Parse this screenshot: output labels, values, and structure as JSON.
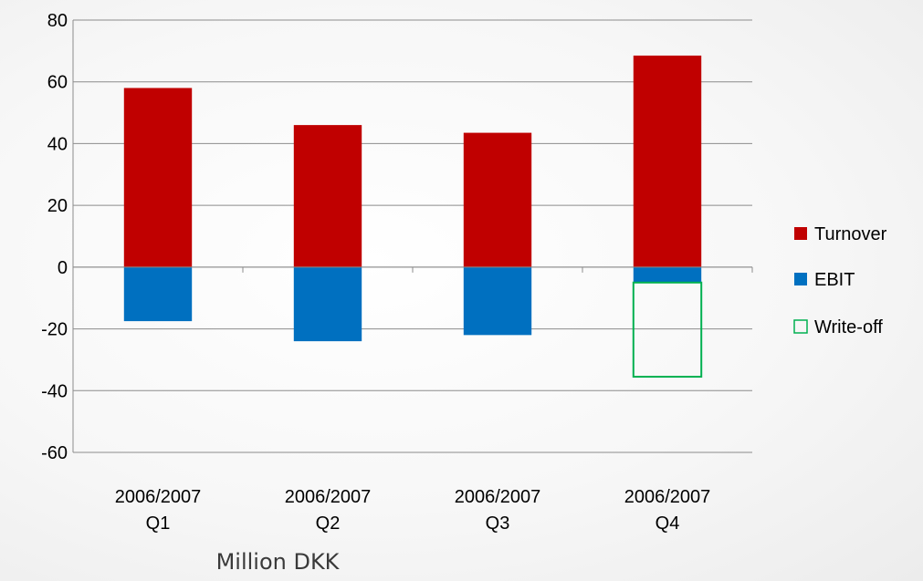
{
  "chart_data": {
    "type": "bar",
    "stacked": true,
    "categories": [
      [
        "2006/2007",
        "Q1"
      ],
      [
        "2006/2007",
        "Q2"
      ],
      [
        "2006/2007",
        "Q3"
      ],
      [
        "2006/2007",
        "Q4"
      ]
    ],
    "series": [
      {
        "name": "Turnover",
        "values": [
          58,
          46,
          43.5,
          68.5
        ],
        "color": "#c00000",
        "style": "filled"
      },
      {
        "name": "EBIT",
        "values": [
          -17.5,
          -24,
          -22,
          -5
        ],
        "color": "#0070c0",
        "style": "filled"
      },
      {
        "name": "Write-off",
        "values": [
          0,
          0,
          0,
          -30.5
        ],
        "color": "#00b050",
        "style": "outline"
      }
    ],
    "ylim": [
      -60,
      80
    ],
    "yticks": [
      -60,
      -40,
      -20,
      0,
      20,
      40,
      60,
      80
    ],
    "grid": true,
    "xlabel": "Million DKK",
    "ylabel": "",
    "title": "",
    "legend": {
      "position": "right"
    }
  }
}
